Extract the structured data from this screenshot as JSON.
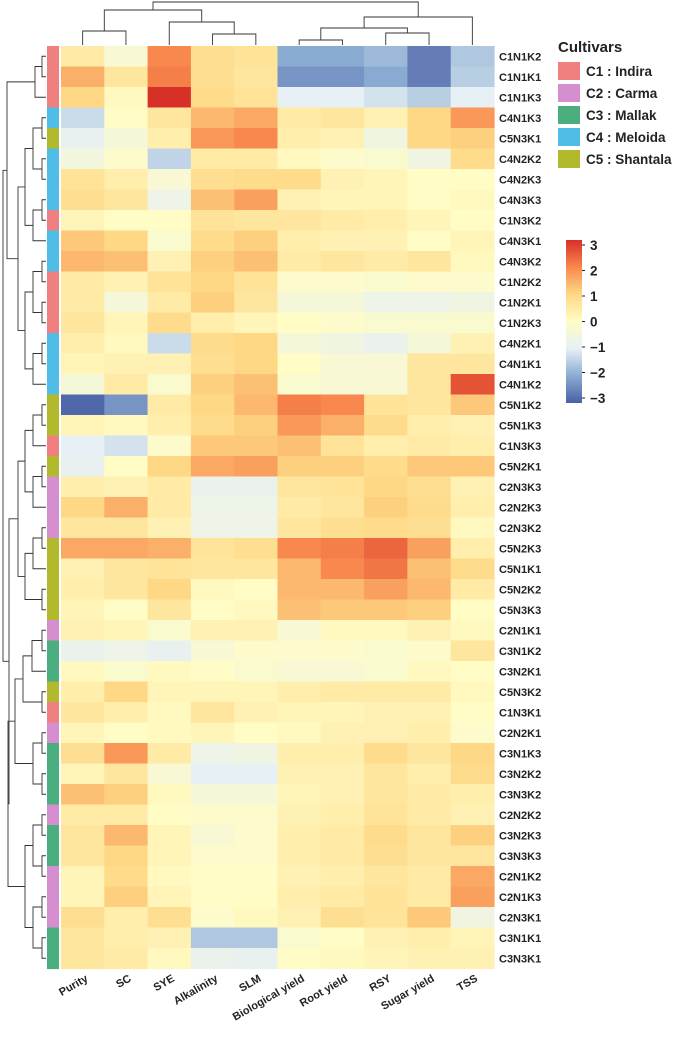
{
  "chart_data": {
    "type": "heatmap",
    "columns": [
      "Purity",
      "SC",
      "SYE",
      "Alkalinity",
      "SLM",
      "Biological yield",
      "Root yield",
      "RSY",
      "Sugar yield",
      "TSS"
    ],
    "rows": [
      {
        "label": "C1N1K2",
        "cultivar": "C1",
        "values": [
          0.5,
          -0.3,
          2.0,
          0.8,
          0.7,
          -2.0,
          -2.0,
          -1.8,
          -2.6,
          -1.6
        ]
      },
      {
        "label": "C1N1K1",
        "cultivar": "C1",
        "values": [
          1.5,
          0.6,
          2.1,
          0.8,
          0.6,
          -2.3,
          -2.3,
          -2.0,
          -2.6,
          -1.5
        ]
      },
      {
        "label": "C1N1K3",
        "cultivar": "C1",
        "values": [
          1.0,
          0.1,
          3.0,
          0.9,
          0.7,
          -1.0,
          -1.0,
          -1.2,
          -1.5,
          -1.0
        ]
      },
      {
        "label": "C4N1K3",
        "cultivar": "C4",
        "values": [
          -1.3,
          0.0,
          0.6,
          1.4,
          1.6,
          0.5,
          0.6,
          0.3,
          1.0,
          1.8
        ]
      },
      {
        "label": "C5N3K1",
        "cultivar": "C5",
        "values": [
          -0.9,
          -0.4,
          0.4,
          1.8,
          2.0,
          0.4,
          0.3,
          -0.6,
          1.0,
          1.1
        ]
      },
      {
        "label": "C4N2K2",
        "cultivar": "C4",
        "values": [
          -0.5,
          -0.1,
          -1.4,
          0.5,
          0.5,
          0.1,
          -0.1,
          -0.2,
          -0.6,
          0.9
        ]
      },
      {
        "label": "C4N2K3",
        "cultivar": "C4",
        "values": [
          0.7,
          0.4,
          -0.3,
          0.8,
          0.9,
          0.9,
          0.3,
          0.2,
          0.0,
          0.0
        ]
      },
      {
        "label": "C4N3K3",
        "cultivar": "C4",
        "values": [
          0.8,
          0.6,
          -0.7,
          1.3,
          1.7,
          0.3,
          0.2,
          0.2,
          0.0,
          0.1
        ]
      },
      {
        "label": "C1N3K2",
        "cultivar": "C1",
        "values": [
          0.2,
          0.0,
          0.0,
          0.7,
          0.6,
          0.6,
          0.5,
          0.4,
          0.2,
          0.0
        ]
      },
      {
        "label": "C4N3K1",
        "cultivar": "C4",
        "values": [
          1.2,
          1.0,
          -0.2,
          0.9,
          1.1,
          0.4,
          0.3,
          0.3,
          0.0,
          0.2
        ]
      },
      {
        "label": "C4N3K2",
        "cultivar": "C4",
        "values": [
          1.4,
          1.3,
          0.3,
          1.1,
          1.3,
          0.5,
          0.6,
          0.5,
          0.6,
          0.1
        ]
      },
      {
        "label": "C1N2K2",
        "cultivar": "C1",
        "values": [
          0.5,
          0.3,
          0.7,
          1.0,
          0.7,
          -0.1,
          -0.1,
          -0.2,
          -0.1,
          -0.1
        ]
      },
      {
        "label": "C1N2K1",
        "cultivar": "C1",
        "values": [
          0.5,
          -0.4,
          0.5,
          1.1,
          0.6,
          -0.4,
          -0.4,
          -0.7,
          -0.7,
          -0.6
        ]
      },
      {
        "label": "C1N2K3",
        "cultivar": "C1",
        "values": [
          0.6,
          0.2,
          0.9,
          0.4,
          0.2,
          0.0,
          -0.1,
          -0.2,
          -0.2,
          -0.2
        ]
      },
      {
        "label": "C4N2K1",
        "cultivar": "C4",
        "values": [
          0.4,
          0.1,
          -1.3,
          0.9,
          1.0,
          -0.4,
          -0.6,
          -0.8,
          -0.4,
          0.3
        ]
      },
      {
        "label": "C4N1K1",
        "cultivar": "C4",
        "values": [
          0.2,
          0.3,
          0.3,
          0.8,
          1.0,
          0.0,
          -0.3,
          -0.3,
          0.6,
          0.6
        ]
      },
      {
        "label": "C4N1K2",
        "cultivar": "C4",
        "values": [
          -0.4,
          0.5,
          -0.2,
          1.1,
          1.3,
          -0.2,
          -0.3,
          -0.3,
          0.6,
          2.6
        ]
      },
      {
        "label": "C5N1K2",
        "cultivar": "C5",
        "values": [
          -2.9,
          -2.3,
          0.5,
          1.0,
          1.4,
          2.1,
          2.0,
          0.7,
          0.6,
          1.2
        ]
      },
      {
        "label": "C5N1K3",
        "cultivar": "C5",
        "values": [
          0.2,
          0.1,
          0.4,
          0.9,
          1.1,
          1.8,
          1.5,
          0.9,
          0.4,
          0.3
        ]
      },
      {
        "label": "C1N3K3",
        "cultivar": "C1",
        "values": [
          -1.0,
          -1.2,
          -0.1,
          1.2,
          1.2,
          1.3,
          0.7,
          0.4,
          0.5,
          0.4
        ]
      },
      {
        "label": "C5N2K1",
        "cultivar": "C5",
        "values": [
          -0.9,
          0.0,
          1.0,
          1.6,
          1.7,
          1.1,
          1.1,
          0.9,
          1.2,
          1.2
        ]
      },
      {
        "label": "C2N3K3",
        "cultivar": "C2",
        "values": [
          0.4,
          0.3,
          0.5,
          -0.8,
          -0.8,
          0.6,
          0.7,
          1.0,
          0.8,
          0.3
        ]
      },
      {
        "label": "C2N2K3",
        "cultivar": "C2",
        "values": [
          1.0,
          1.5,
          0.5,
          -0.7,
          -0.7,
          0.5,
          0.6,
          1.1,
          0.9,
          0.4
        ]
      },
      {
        "label": "C2N3K2",
        "cultivar": "C2",
        "values": [
          0.6,
          0.6,
          0.3,
          -0.7,
          -0.7,
          0.6,
          0.8,
          0.9,
          0.8,
          0.1
        ]
      },
      {
        "label": "C5N2K3",
        "cultivar": "C5",
        "values": [
          1.6,
          1.6,
          1.5,
          0.7,
          0.8,
          2.0,
          2.1,
          2.4,
          1.7,
          0.4
        ]
      },
      {
        "label": "C5N1K1",
        "cultivar": "C5",
        "values": [
          0.3,
          0.6,
          0.7,
          0.6,
          0.6,
          1.4,
          2.0,
          2.2,
          1.3,
          0.9
        ]
      },
      {
        "label": "C5N2K2",
        "cultivar": "C5",
        "values": [
          0.4,
          0.6,
          1.0,
          0.1,
          0.0,
          1.4,
          1.4,
          1.7,
          1.4,
          0.5
        ]
      },
      {
        "label": "C5N3K3",
        "cultivar": "C5",
        "values": [
          0.2,
          0.0,
          0.6,
          0.0,
          0.1,
          1.3,
          1.2,
          1.2,
          1.1,
          0.0
        ]
      },
      {
        "label": "C2N1K1",
        "cultivar": "C2",
        "values": [
          0.3,
          0.2,
          -0.2,
          0.3,
          0.3,
          -0.3,
          0.1,
          0.1,
          0.3,
          0.1
        ]
      },
      {
        "label": "C3N1K2",
        "cultivar": "C3",
        "values": [
          -0.8,
          -0.7,
          -0.9,
          -0.3,
          -0.1,
          -0.1,
          -0.1,
          -0.2,
          -0.1,
          0.6
        ]
      },
      {
        "label": "C3N2K1",
        "cultivar": "C3",
        "values": [
          0.1,
          -0.2,
          0.1,
          0.0,
          -0.2,
          -0.3,
          -0.3,
          -0.2,
          0.1,
          0.0
        ]
      },
      {
        "label": "C5N3K2",
        "cultivar": "C5",
        "values": [
          0.4,
          1.0,
          0.2,
          0.2,
          0.2,
          0.4,
          0.5,
          0.5,
          0.5,
          0.1
        ]
      },
      {
        "label": "C1N3K1",
        "cultivar": "C1",
        "values": [
          0.6,
          0.4,
          0.1,
          0.6,
          0.3,
          0.2,
          0.2,
          0.3,
          0.3,
          0.0
        ]
      },
      {
        "label": "C2N2K1",
        "cultivar": "C2",
        "values": [
          0.2,
          0.0,
          0.1,
          0.2,
          0.0,
          0.1,
          0.3,
          0.3,
          0.4,
          -0.1
        ]
      },
      {
        "label": "C3N1K3",
        "cultivar": "C3",
        "values": [
          0.8,
          1.8,
          0.5,
          -0.7,
          -0.6,
          0.4,
          0.4,
          0.9,
          0.6,
          1.0
        ]
      },
      {
        "label": "C3N2K2",
        "cultivar": "C3",
        "values": [
          0.2,
          0.6,
          -0.3,
          -1.0,
          -1.0,
          0.3,
          0.3,
          0.6,
          0.4,
          0.9
        ]
      },
      {
        "label": "C3N3K2",
        "cultivar": "C3",
        "values": [
          1.3,
          1.1,
          0.1,
          -0.4,
          -0.4,
          0.2,
          0.3,
          0.6,
          0.5,
          0.4
        ]
      },
      {
        "label": "C2N2K2",
        "cultivar": "C2",
        "values": [
          0.5,
          0.5,
          0.0,
          -0.1,
          -0.1,
          0.3,
          0.4,
          0.7,
          0.5,
          0.3
        ]
      },
      {
        "label": "C3N2K3",
        "cultivar": "C3",
        "values": [
          0.6,
          1.4,
          0.2,
          -0.3,
          -0.1,
          0.4,
          0.5,
          0.9,
          0.6,
          1.1
        ]
      },
      {
        "label": "C3N3K3",
        "cultivar": "C3",
        "values": [
          0.6,
          1.0,
          0.2,
          -0.1,
          -0.1,
          0.4,
          0.5,
          0.8,
          0.6,
          0.6
        ]
      },
      {
        "label": "C2N1K2",
        "cultivar": "C2",
        "values": [
          0.2,
          0.9,
          0.1,
          0.0,
          0.0,
          0.3,
          0.4,
          0.6,
          0.5,
          1.6
        ]
      },
      {
        "label": "C2N1K3",
        "cultivar": "C2",
        "values": [
          0.2,
          1.1,
          0.2,
          0.0,
          0.0,
          0.4,
          0.5,
          0.7,
          0.5,
          1.7
        ]
      },
      {
        "label": "C2N3K1",
        "cultivar": "C2",
        "values": [
          0.8,
          0.4,
          0.8,
          -0.1,
          0.1,
          0.3,
          0.8,
          0.7,
          1.2,
          -0.6
        ]
      },
      {
        "label": "C3N1K1",
        "cultivar": "C3",
        "values": [
          0.6,
          0.4,
          0.3,
          -1.6,
          -1.6,
          -0.2,
          0.0,
          0.3,
          0.4,
          0.2
        ]
      },
      {
        "label": "C3N3K1",
        "cultivar": "C3",
        "values": [
          0.6,
          0.5,
          0.1,
          -0.8,
          -0.9,
          0.0,
          0.1,
          0.2,
          0.3,
          0.3
        ]
      }
    ],
    "color_scale": {
      "min": -3,
      "max": 3,
      "ticks": [
        "3",
        "2",
        "1",
        "0",
        "−1",
        "−2",
        "−3"
      ],
      "stops": [
        "#4a5fa6",
        "#8aabd1",
        "#e6f0f5",
        "#fffcc6",
        "#fed885",
        "#f8884d",
        "#d73027"
      ]
    },
    "legend": {
      "title": "Cultivars",
      "placement": "top-right",
      "items": [
        {
          "code": "C1",
          "label": "C1 : Indira",
          "color": "#f08080"
        },
        {
          "code": "C2",
          "label": "C2 : Carma",
          "color": "#d58fce"
        },
        {
          "code": "C3",
          "label": "C3 : Mallak",
          "color": "#4bae7f"
        },
        {
          "code": "C4",
          "label": "C4 : Meloida",
          "color": "#4fbde6"
        },
        {
          "code": "C5",
          "label": "C5 : Shantala",
          "color": "#b3b92d"
        }
      ]
    },
    "row_dendrogram": true,
    "column_dendrogram": true
  }
}
